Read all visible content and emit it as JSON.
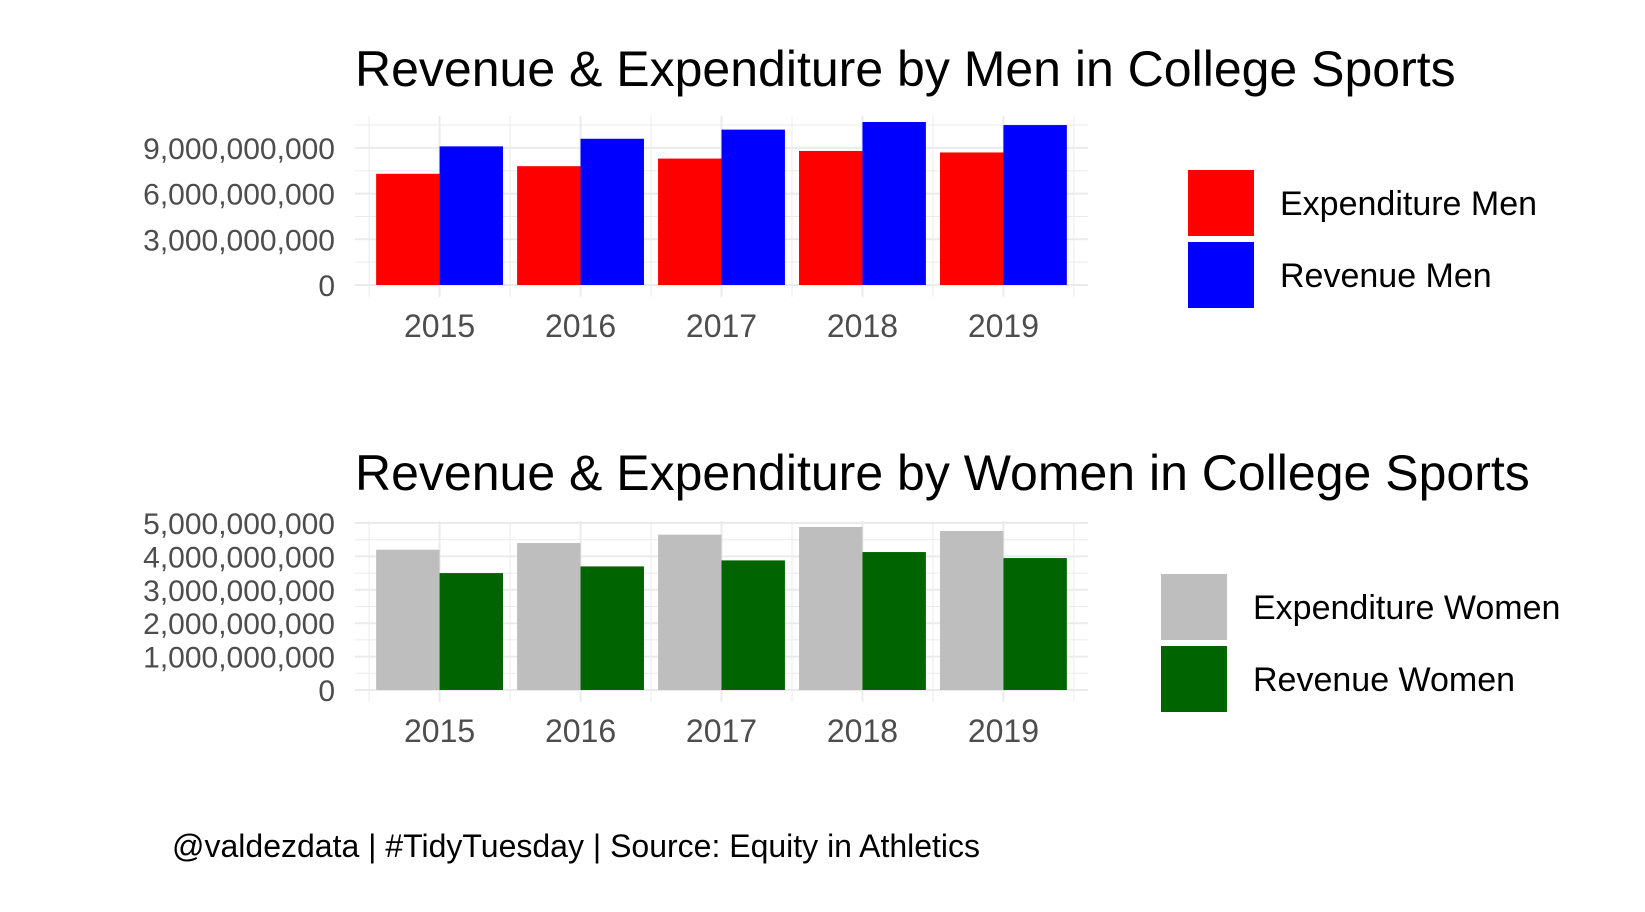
{
  "chart_data": [
    {
      "type": "bar",
      "title": "Revenue & Expenditure by Men in College Sports",
      "xlabel": "",
      "ylabel": "",
      "categories": [
        "2015",
        "2016",
        "2017",
        "2018",
        "2019"
      ],
      "series": [
        {
          "name": "Expenditure Men",
          "color": "#ff0000",
          "values": [
            7300000000,
            7800000000,
            8300000000,
            8800000000,
            8700000000
          ]
        },
        {
          "name": "Revenue Men",
          "color": "#0000ff",
          "values": [
            9100000000,
            9600000000,
            10200000000,
            10700000000,
            10500000000
          ]
        }
      ],
      "ylim": [
        0,
        10700000000
      ],
      "yticks": [
        0,
        3000000000,
        6000000000,
        9000000000
      ],
      "ytick_labels": [
        "0",
        "3,000,000,000",
        "6,000,000,000",
        "9,000,000,000"
      ],
      "grid": true,
      "legend_position": "right"
    },
    {
      "type": "bar",
      "title": "Revenue & Expenditure by Women in College Sports",
      "xlabel": "",
      "ylabel": "",
      "categories": [
        "2015",
        "2016",
        "2017",
        "2018",
        "2019"
      ],
      "series": [
        {
          "name": "Expenditure Women",
          "color": "#bebebe",
          "values": [
            4200000000,
            4400000000,
            4650000000,
            4880000000,
            4760000000
          ]
        },
        {
          "name": "Revenue Women",
          "color": "#006400",
          "values": [
            3500000000,
            3700000000,
            3880000000,
            4130000000,
            3950000000
          ]
        }
      ],
      "ylim": [
        0,
        4880000000
      ],
      "yticks": [
        0,
        1000000000,
        2000000000,
        3000000000,
        4000000000,
        5000000000
      ],
      "ytick_labels": [
        "0",
        "1,000,000,000",
        "2,000,000,000",
        "3,000,000,000",
        "4,000,000,000",
        "5,000,000,000"
      ],
      "grid": true,
      "legend_position": "right"
    }
  ],
  "caption": "@valdezdata | #TidyTuesday | Source: Equity in Athletics"
}
